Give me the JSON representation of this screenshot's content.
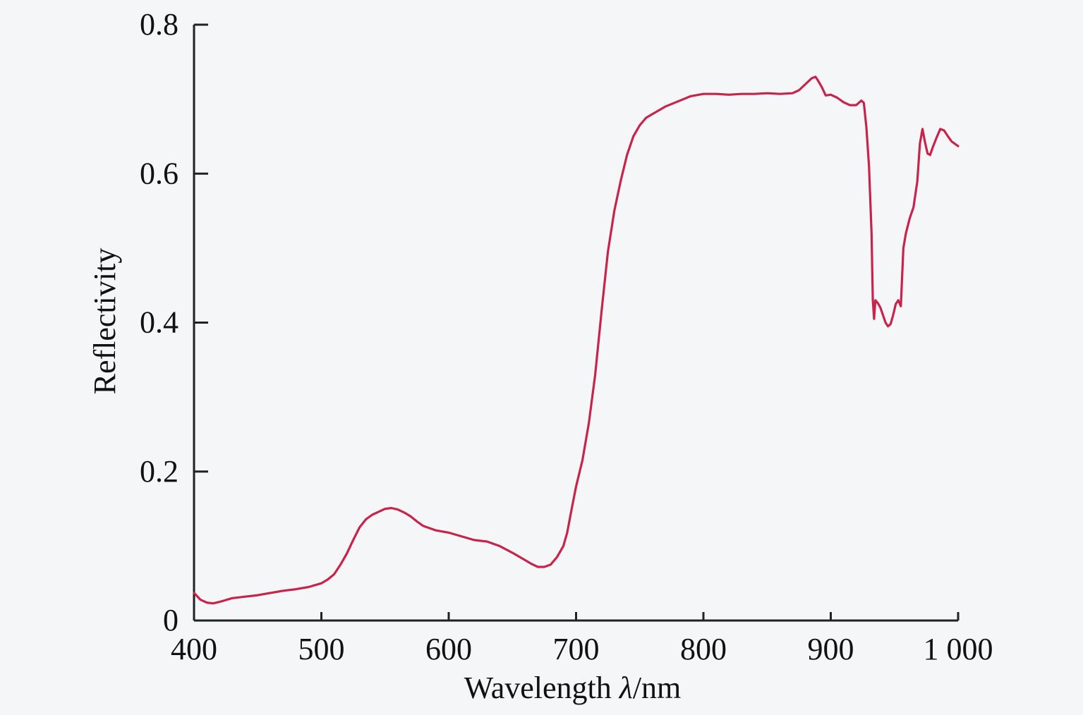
{
  "chart_data": {
    "type": "line",
    "title": "",
    "xlabel": "Wavelength λ/nm",
    "xlabel_parts": {
      "prefix": "Wavelength ",
      "symbol": "λ",
      "suffix": "/nm"
    },
    "ylabel": "Reflectivity",
    "xlim": [
      400,
      1000
    ],
    "ylim": [
      0,
      0.8
    ],
    "x_ticks": [
      {
        "value": 400,
        "label": "400"
      },
      {
        "value": 500,
        "label": "500"
      },
      {
        "value": 600,
        "label": "600"
      },
      {
        "value": 700,
        "label": "700"
      },
      {
        "value": 800,
        "label": "800"
      },
      {
        "value": 900,
        "label": "900"
      },
      {
        "value": 1000,
        "label": "1 000"
      }
    ],
    "y_ticks": [
      {
        "value": 0,
        "label": "0"
      },
      {
        "value": 0.2,
        "label": "0.2"
      },
      {
        "value": 0.4,
        "label": "0.4"
      },
      {
        "value": 0.6,
        "label": "0.6"
      },
      {
        "value": 0.8,
        "label": "0.8"
      }
    ],
    "grid": false,
    "legend": "none",
    "series": [
      {
        "color": "#c8234a",
        "x": [
          400,
          405,
          410,
          415,
          420,
          430,
          440,
          450,
          460,
          470,
          480,
          490,
          500,
          505,
          510,
          515,
          520,
          525,
          530,
          535,
          540,
          545,
          550,
          555,
          560,
          565,
          570,
          575,
          580,
          590,
          600,
          610,
          620,
          630,
          640,
          650,
          660,
          665,
          670,
          675,
          680,
          685,
          690,
          693,
          696,
          700,
          705,
          710,
          715,
          720,
          725,
          730,
          735,
          740,
          745,
          750,
          755,
          760,
          765,
          770,
          780,
          790,
          800,
          810,
          820,
          830,
          840,
          850,
          860,
          870,
          875,
          880,
          885,
          888,
          890,
          893,
          896,
          900,
          905,
          910,
          915,
          920,
          924,
          926,
          928,
          930,
          932,
          933,
          934,
          935,
          937,
          939,
          941,
          943,
          945,
          947,
          949,
          951,
          953,
          955,
          957,
          959,
          962,
          965,
          968,
          970,
          972,
          974,
          976,
          978,
          980,
          983,
          986,
          989,
          992,
          995,
          1000
        ],
        "y": [
          0.037,
          0.028,
          0.024,
          0.023,
          0.025,
          0.03,
          0.032,
          0.034,
          0.037,
          0.04,
          0.042,
          0.045,
          0.05,
          0.055,
          0.062,
          0.075,
          0.09,
          0.108,
          0.125,
          0.136,
          0.142,
          0.146,
          0.15,
          0.151,
          0.149,
          0.145,
          0.14,
          0.133,
          0.127,
          0.121,
          0.118,
          0.113,
          0.108,
          0.106,
          0.1,
          0.091,
          0.081,
          0.076,
          0.072,
          0.072,
          0.075,
          0.085,
          0.1,
          0.118,
          0.145,
          0.18,
          0.215,
          0.265,
          0.33,
          0.415,
          0.495,
          0.55,
          0.59,
          0.625,
          0.65,
          0.665,
          0.675,
          0.68,
          0.685,
          0.69,
          0.697,
          0.704,
          0.707,
          0.707,
          0.706,
          0.707,
          0.707,
          0.708,
          0.707,
          0.708,
          0.712,
          0.72,
          0.728,
          0.73,
          0.725,
          0.716,
          0.705,
          0.706,
          0.702,
          0.696,
          0.692,
          0.692,
          0.698,
          0.695,
          0.662,
          0.61,
          0.52,
          0.43,
          0.405,
          0.43,
          0.426,
          0.42,
          0.41,
          0.4,
          0.395,
          0.398,
          0.41,
          0.425,
          0.43,
          0.422,
          0.5,
          0.52,
          0.54,
          0.555,
          0.59,
          0.64,
          0.66,
          0.642,
          0.627,
          0.625,
          0.635,
          0.648,
          0.66,
          0.658,
          0.65,
          0.643,
          0.637
        ]
      }
    ]
  }
}
